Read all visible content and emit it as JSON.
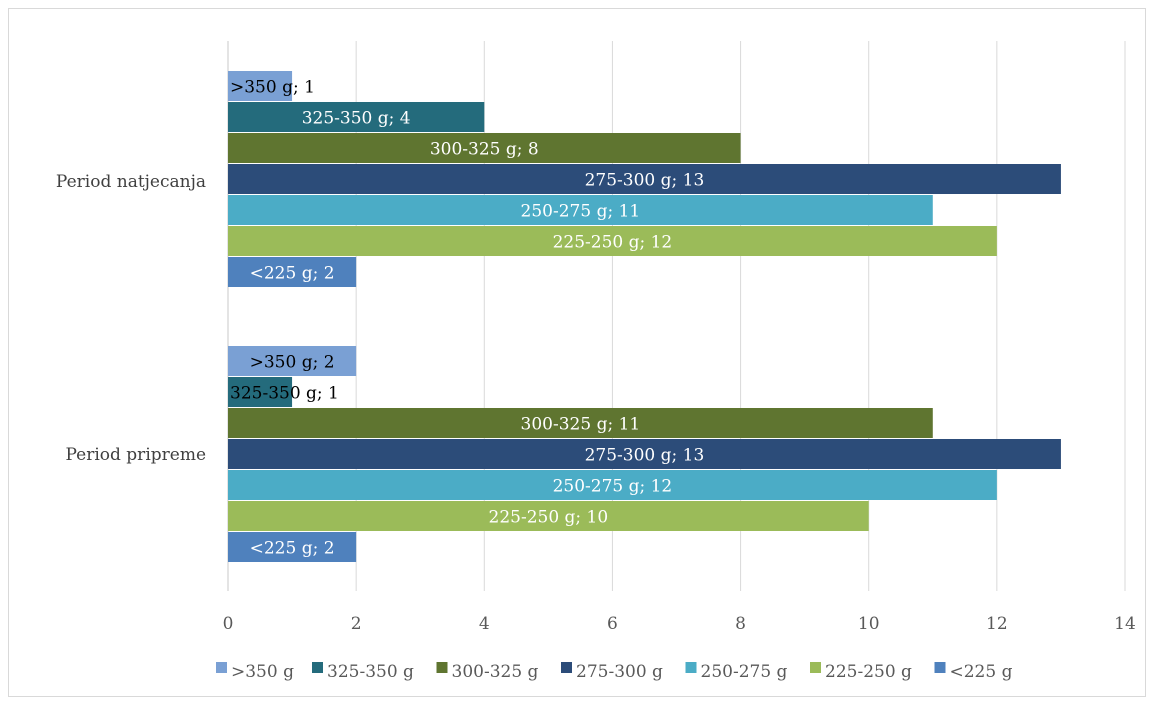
{
  "chart_data": {
    "type": "bar",
    "orientation": "horizontal",
    "categories": [
      "Period natjecanja",
      "Period pripreme"
    ],
    "series": [
      {
        "name": ">350 g",
        "color": "#7aa0d4",
        "values": [
          1,
          2
        ],
        "labels": [
          ">350 g; 1",
          ">350 g; 2"
        ]
      },
      {
        "name": "325-350 g",
        "color": "#246b7c",
        "values": [
          4,
          1
        ],
        "labels": [
          "325-350 g; 4",
          "325-350 g; 1"
        ]
      },
      {
        "name": "300-325 g",
        "color": "#5f7530",
        "values": [
          8,
          11
        ],
        "labels": [
          "300-325 g; 8",
          "300-325 g; 11"
        ]
      },
      {
        "name": "275-300 g",
        "color": "#2c4c79",
        "values": [
          13,
          13
        ],
        "labels": [
          "275-300 g; 13",
          "275-300 g; 13"
        ]
      },
      {
        "name": "250-275 g",
        "color": "#4bacc6",
        "values": [
          11,
          12
        ],
        "labels": [
          "250-275 g; 11",
          "250-275 g; 12"
        ]
      },
      {
        "name": "225-250 g",
        "color": "#9bbb59",
        "values": [
          12,
          10
        ],
        "labels": [
          "225-250 g; 12",
          "225-250 g; 10"
        ]
      },
      {
        "name": "<225 g",
        "color": "#4f81bd",
        "values": [
          2,
          2
        ],
        "labels": [
          "<225 g; 2",
          "<225 g; 2"
        ]
      }
    ],
    "xlim": [
      0,
      14
    ],
    "xticks": [
      "0",
      "2",
      "4",
      "6",
      "8",
      "10",
      "12",
      "14"
    ],
    "grid": true,
    "legend_position": "bottom"
  }
}
